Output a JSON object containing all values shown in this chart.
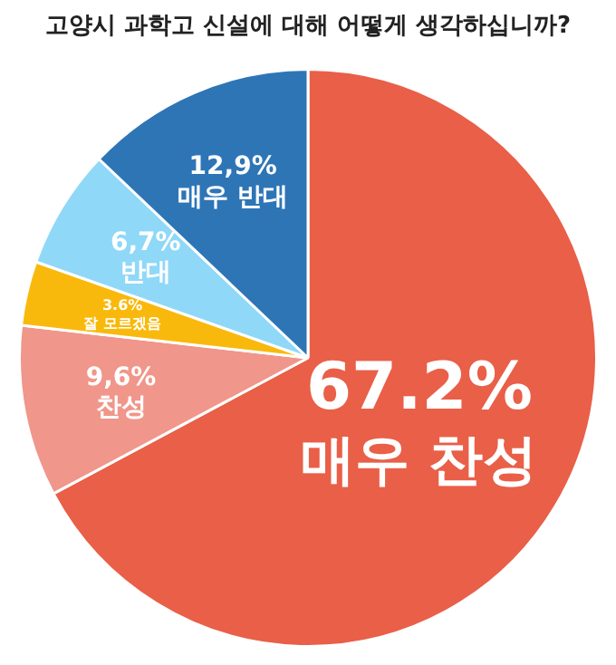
{
  "chart_data": {
    "type": "pie",
    "title": "고양시 과학고 신설에 대해 어떻게 생각하십니까?",
    "categories": [
      "매우 찬성",
      "찬성",
      "잘 모르겠음",
      "반대",
      "매우 반대"
    ],
    "values": [
      67.2,
      9.6,
      3.6,
      6.7,
      12.9
    ],
    "value_labels": [
      "67.2%",
      "9,6%",
      "3.6%",
      "6,7%",
      "12,9%"
    ],
    "colors": [
      "#e95f48",
      "#f0968a",
      "#f9b90c",
      "#8fd8f8",
      "#2e75b6"
    ],
    "legend": false
  }
}
